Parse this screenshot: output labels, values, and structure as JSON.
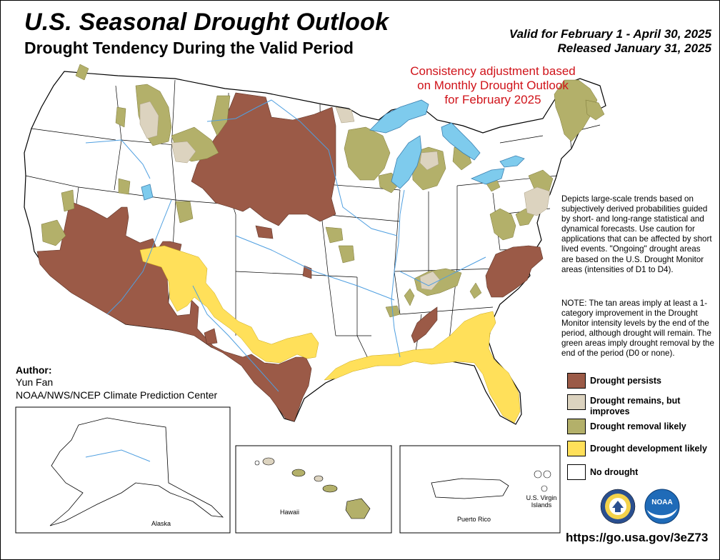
{
  "title": "U.S. Seasonal Drought Outlook",
  "subtitle": "Drought Tendency During the Valid Period",
  "valid_text": "Valid for February 1 - April 30, 2025",
  "released_text": "Released January 31, 2025",
  "consistency_note": "Consistency adjustment based on Monthly Drought Outlook for February 2025",
  "explanation": "Depicts large-scale trends based on subjectively derived probabilities guided by short- and long-range statistical and dynamical forecasts. Use caution for applications that can be affected by short lived events. \"Ongoing\" drought areas are based on the U.S. Drought Monitor areas (intensities of D1 to D4).",
  "note": "NOTE: The tan areas imply at least a 1-category improvement in the Drought Monitor intensity levels by the end of the period, although drought will remain. The green areas imply drought removal by the end of the period (D0 or none).",
  "legend": {
    "items": [
      {
        "label": "Drought persists",
        "color": "#9b5a47"
      },
      {
        "label": "Drought remains, but improves",
        "color": "#dcd3bf"
      },
      {
        "label": "Drought removal likely",
        "color": "#b3b06a"
      },
      {
        "label": "Drought development likely",
        "color": "#ffe05a"
      },
      {
        "label": "No drought",
        "color": "#ffffff"
      }
    ]
  },
  "author": {
    "heading": "Author:",
    "name": "Yun Fan",
    "org": "NOAA/NWS/NCEP Climate Prediction Center"
  },
  "insets": {
    "alaska": "Alaska",
    "hawaii": "Hawaii",
    "puerto_rico": "Puerto Rico",
    "virgin_islands": "U.S. Virgin Islands"
  },
  "url": "https://go.usa.gov/3eZ73",
  "colors": {
    "water": "#7ecbed",
    "river": "#4f9fe0",
    "boundary": "#000000"
  },
  "logos": [
    "department-of-commerce-seal",
    "noaa-logo"
  ]
}
